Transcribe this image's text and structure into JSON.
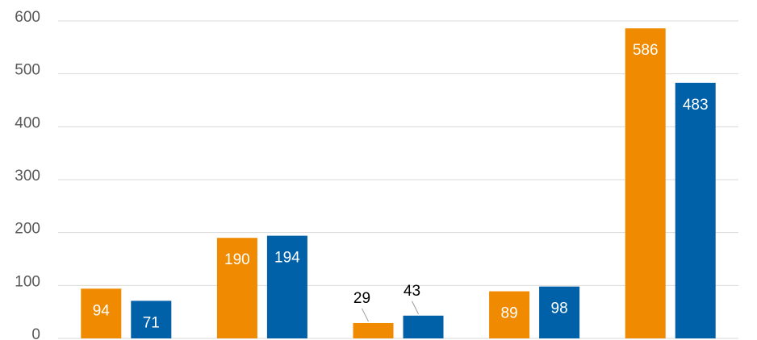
{
  "chart_data": {
    "type": "bar",
    "categories": [
      null,
      null,
      null,
      null,
      null
    ],
    "series": [
      {
        "color": "#f08a00",
        "values": [
          94,
          190,
          29,
          89,
          586
        ]
      },
      {
        "color": "#0061a8",
        "values": [
          71,
          194,
          43,
          98,
          483
        ]
      }
    ],
    "ylim": [
      0,
      600
    ],
    "yticks": [
      0,
      100,
      200,
      300,
      400,
      500,
      600
    ],
    "grid": true
  }
}
